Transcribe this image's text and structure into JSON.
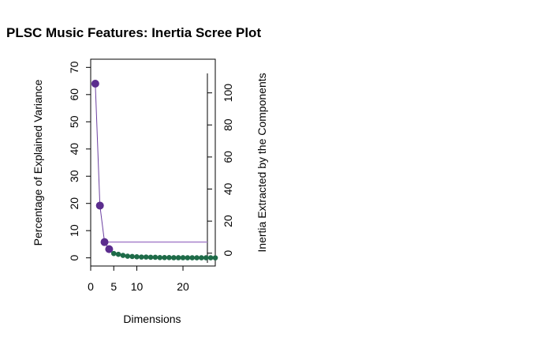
{
  "chart_data": {
    "type": "line",
    "title": "PLSC Music Features: Inertia Scree Plot",
    "xlabel": "Dimensions",
    "ylabel_left": "Percentage of Explained Variance",
    "ylabel_right": "Inertia Extracted by the Components",
    "x": [
      1,
      2,
      3,
      4,
      5,
      6,
      7,
      8,
      9,
      10,
      11,
      12,
      13,
      14,
      15,
      16,
      17,
      18,
      19,
      20,
      21,
      22,
      23,
      24,
      25,
      26,
      27
    ],
    "percent_explained": [
      64.0,
      19.2,
      5.8,
      3.2,
      1.6,
      1.3,
      0.9,
      0.6,
      0.5,
      0.4,
      0.3,
      0.3,
      0.2,
      0.2,
      0.1,
      0.1,
      0.1,
      0.05,
      0.05,
      0.05,
      0.04,
      0.04,
      0.03,
      0.03,
      0.02,
      0.02,
      0.01
    ],
    "highlighted_dimensions": 4,
    "reference_line_percent": 5.8,
    "xticks": [
      0,
      5,
      10,
      20
    ],
    "yticks_left": [
      0,
      10,
      20,
      30,
      40,
      50,
      60,
      70
    ],
    "yticks_right": [
      0,
      20,
      40,
      60,
      80,
      100
    ],
    "xlim": [
      0,
      27
    ],
    "ylim_left": [
      -3,
      73
    ],
    "ylim_right": [
      -8,
      121
    ],
    "colors": {
      "highlight": "#5b2d8e",
      "rest": "#1e6b48",
      "line": "#6b3fa0",
      "reference": "#a883cc"
    }
  }
}
